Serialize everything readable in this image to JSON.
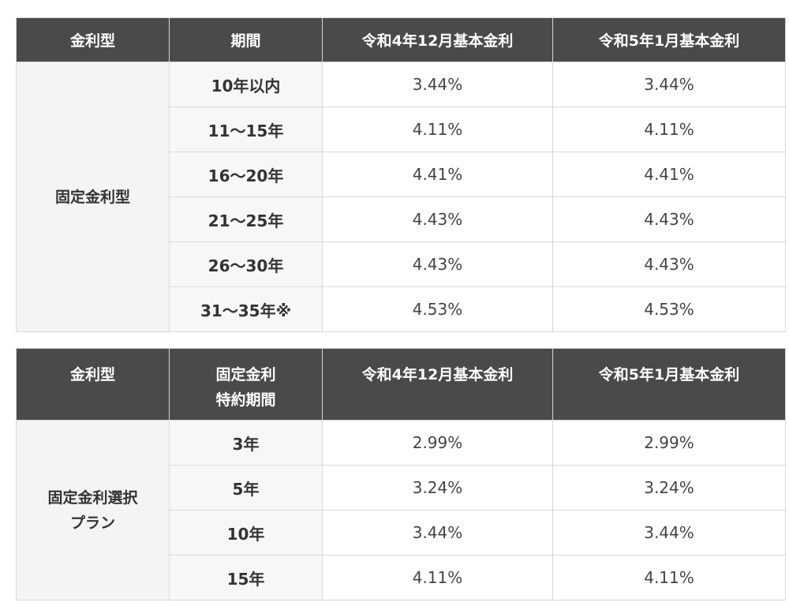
{
  "table1": {
    "headers": [
      "金利型",
      "期間",
      "令和4年12月基本金利",
      "令和5年1月基本金利"
    ],
    "type_label": "固定金利型",
    "rows": [
      {
        "period": "10年以内",
        "dec": "3.44%",
        "jan": "3.44%"
      },
      {
        "period": "11〜15年",
        "dec": "4.11%",
        "jan": "4.11%"
      },
      {
        "period": "16〜20年",
        "dec": "4.41%",
        "jan": "4.41%"
      },
      {
        "period": "21〜25年",
        "dec": "4.43%",
        "jan": "4.43%"
      },
      {
        "period": "26〜30年",
        "dec": "4.43%",
        "jan": "4.43%"
      },
      {
        "period": "31〜35年※",
        "dec": "4.53%",
        "jan": "4.53%"
      }
    ]
  },
  "table2": {
    "headers": {
      "type": "金利型",
      "period_line1": "固定金利",
      "period_line2": "特約期間",
      "dec": "令和4年12月基本金利",
      "jan": "令和5年1月基本金利"
    },
    "type_label_line1": "固定金利選択",
    "type_label_line2": "プラン",
    "rows": [
      {
        "period": "3年",
        "dec": "2.99%",
        "jan": "2.99%"
      },
      {
        "period": "5年",
        "dec": "3.24%",
        "jan": "3.24%"
      },
      {
        "period": "10年",
        "dec": "3.44%",
        "jan": "3.44%"
      },
      {
        "period": "15年",
        "dec": "4.11%",
        "jan": "4.11%"
      }
    ]
  }
}
